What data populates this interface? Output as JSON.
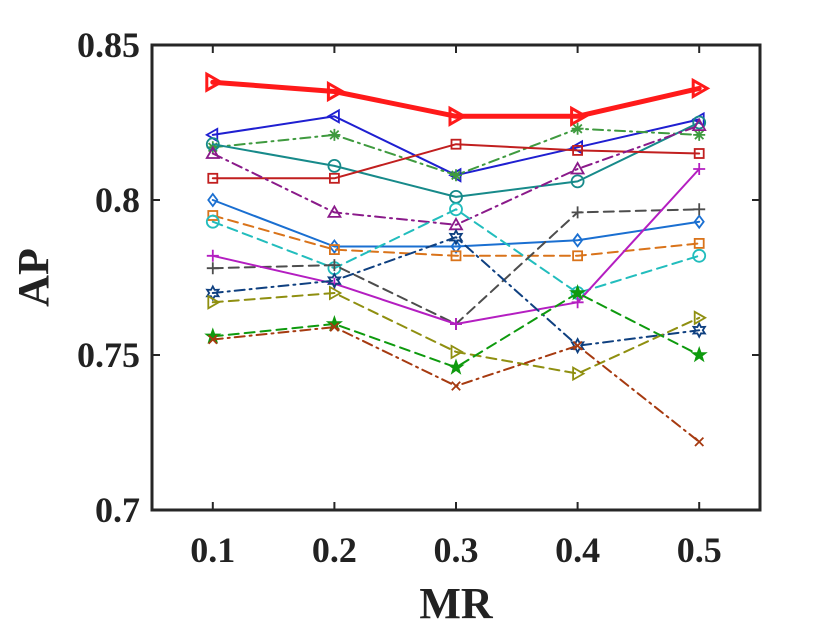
{
  "chart_data": {
    "type": "line",
    "title": "",
    "xlabel": "MR",
    "ylabel": "AP",
    "x": [
      0.1,
      0.2,
      0.3,
      0.4,
      0.5
    ],
    "x_tick_labels": [
      "0.1",
      "0.2",
      "0.3",
      "0.4",
      "0.5"
    ],
    "xlim": [
      0.05,
      0.55
    ],
    "ylim": [
      0.7,
      0.85
    ],
    "y_ticks": [
      0.7,
      0.75,
      0.8,
      0.85
    ],
    "y_tick_labels": [
      "0.7",
      "0.75",
      "0.8",
      "0.85"
    ],
    "grid": false,
    "legend": "none",
    "series": [
      {
        "name": "red-triangle-right-thick",
        "color": "#ff1a1a",
        "dash": "solid",
        "width": 5,
        "marker": "triangle-right",
        "values": [
          0.838,
          0.835,
          0.827,
          0.827,
          0.836
        ]
      },
      {
        "name": "blue-triangle-left",
        "color": "#1f1fd1",
        "dash": "solid",
        "width": 2,
        "marker": "triangle-left",
        "values": [
          0.821,
          0.827,
          0.808,
          0.817,
          0.826
        ]
      },
      {
        "name": "green-asterisk",
        "color": "#3f9a3f",
        "dash": "dashdot",
        "width": 2,
        "marker": "asterisk",
        "values": [
          0.817,
          0.821,
          0.808,
          0.823,
          0.821
        ]
      },
      {
        "name": "teal-circle",
        "color": "#178a8a",
        "dash": "solid",
        "width": 2,
        "marker": "circle",
        "values": [
          0.818,
          0.811,
          0.801,
          0.806,
          0.825
        ]
      },
      {
        "name": "darkred-square",
        "color": "#c11f1f",
        "dash": "solid",
        "width": 2,
        "marker": "square",
        "values": [
          0.807,
          0.807,
          0.818,
          0.816,
          0.815
        ]
      },
      {
        "name": "purple-triangle-up",
        "color": "#8a1a8a",
        "dash": "dashdot",
        "width": 2,
        "marker": "triangle-up",
        "values": [
          0.815,
          0.796,
          0.792,
          0.81,
          0.824
        ]
      },
      {
        "name": "blue-diamond",
        "color": "#1a6fd1",
        "dash": "solid",
        "width": 2,
        "marker": "diamond",
        "values": [
          0.8,
          0.785,
          0.785,
          0.787,
          0.793
        ]
      },
      {
        "name": "orange-square",
        "color": "#d9731a",
        "dash": "dashed",
        "width": 2,
        "marker": "square",
        "values": [
          0.795,
          0.784,
          0.782,
          0.782,
          0.786
        ]
      },
      {
        "name": "cyan-circle",
        "color": "#22bdbd",
        "dash": "dashed",
        "width": 2,
        "marker": "circle",
        "values": [
          0.793,
          0.778,
          0.797,
          0.77,
          0.782
        ]
      },
      {
        "name": "gray-plus",
        "color": "#4d4d4d",
        "dash": "dashed",
        "width": 2,
        "marker": "plus",
        "values": [
          0.778,
          0.779,
          0.76,
          0.796,
          0.797
        ]
      },
      {
        "name": "magenta-plus",
        "color": "#b41ec1",
        "dash": "solid",
        "width": 2,
        "marker": "plus",
        "values": [
          0.782,
          0.773,
          0.76,
          0.767,
          0.81
        ]
      },
      {
        "name": "navy-hexagram",
        "color": "#0f4080",
        "dash": "dashdot",
        "width": 2,
        "marker": "hexagram",
        "values": [
          0.77,
          0.774,
          0.788,
          0.753,
          0.758
        ]
      },
      {
        "name": "olive-triangle-right",
        "color": "#8f8f10",
        "dash": "dashed",
        "width": 2,
        "marker": "triangle-right",
        "values": [
          0.767,
          0.77,
          0.751,
          0.744,
          0.762
        ]
      },
      {
        "name": "green-pentagram",
        "color": "#0e9a0e",
        "dash": "dashed",
        "width": 2,
        "marker": "pentagram",
        "values": [
          0.756,
          0.76,
          0.746,
          0.77,
          0.75
        ]
      },
      {
        "name": "brown-x",
        "color": "#a63a10",
        "dash": "dashdot",
        "width": 2,
        "marker": "x",
        "values": [
          0.755,
          0.759,
          0.74,
          0.753,
          0.722
        ]
      }
    ]
  }
}
